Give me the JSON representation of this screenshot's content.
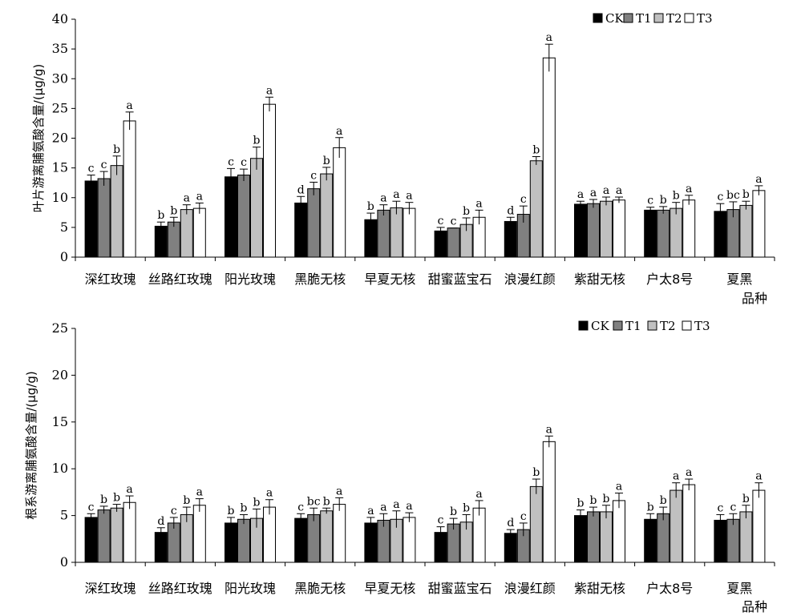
{
  "chart_data": [
    {
      "type": "bar",
      "ylabel": "叶片游离脯氨酸含量/(μg/g)",
      "xlabel": "品种",
      "ylim": [
        0,
        40
      ],
      "yticks": [
        0,
        5,
        10,
        15,
        20,
        25,
        30,
        35,
        40
      ],
      "legend": "top-right",
      "categories": [
        "深红玫瑰",
        "丝路红玫瑰",
        "阳光玫瑰",
        "黑脆无核",
        "早夏无核",
        "甜蜜蓝宝石",
        "浪漫红颜",
        "紫甜无核",
        "户太8号",
        "夏黑"
      ],
      "series": [
        {
          "name": "CK",
          "color": "#000000",
          "values": [
            12.8,
            5.2,
            13.5,
            9.1,
            6.3,
            4.4,
            6.0,
            8.9,
            7.9,
            7.7
          ],
          "errors": [
            1.0,
            0.7,
            1.4,
            1.1,
            1.1,
            0.6,
            0.7,
            0.5,
            0.5,
            1.3
          ],
          "labels": [
            "c",
            "b",
            "c",
            "d",
            "b",
            "c",
            "d",
            "a",
            "c",
            "c"
          ]
        },
        {
          "name": "T1",
          "color": "#808080",
          "values": [
            13.2,
            5.9,
            13.8,
            11.5,
            7.9,
            4.9,
            7.2,
            9.0,
            7.9,
            8.0
          ],
          "errors": [
            1.2,
            0.8,
            1.0,
            1.1,
            0.9,
            0.0,
            1.4,
            0.7,
            0.6,
            1.3
          ],
          "labels": [
            "c",
            "b",
            "c",
            "c",
            "a",
            "c",
            "c",
            "a",
            "b",
            "bc"
          ]
        },
        {
          "name": "T2",
          "color": "#c0c0c0",
          "values": [
            15.4,
            8.0,
            16.6,
            14.0,
            8.3,
            5.5,
            16.2,
            9.4,
            8.2,
            8.7
          ],
          "errors": [
            1.6,
            0.8,
            1.9,
            1.1,
            1.1,
            1.1,
            0.7,
            0.7,
            1.0,
            0.7
          ],
          "labels": [
            "b",
            "a",
            "b",
            "b",
            "a",
            "b",
            "b",
            "a",
            "b",
            "b"
          ]
        },
        {
          "name": "T3",
          "color": "#ffffff",
          "values": [
            22.9,
            8.2,
            25.7,
            18.4,
            8.2,
            6.7,
            33.5,
            9.6,
            9.6,
            11.2
          ],
          "errors": [
            1.5,
            0.9,
            1.2,
            1.7,
            1.0,
            1.2,
            2.3,
            0.5,
            0.8,
            0.8
          ],
          "labels": [
            "a",
            "a",
            "a",
            "a",
            "a",
            "a",
            "a",
            "a",
            "a",
            "a"
          ]
        }
      ]
    },
    {
      "type": "bar",
      "ylabel": "根系游离脯氨酸含量/(μg/g)",
      "xlabel": "品种",
      "ylim": [
        0,
        25
      ],
      "yticks": [
        0,
        5,
        10,
        15,
        20,
        25
      ],
      "legend": "top-right",
      "categories": [
        "深红玫瑰",
        "丝路红玫瑰",
        "阳光玫瑰",
        "黑脆无核",
        "早夏无核",
        "甜蜜蓝宝石",
        "浪漫红颜",
        "紫甜无核",
        "户太8号",
        "夏黑"
      ],
      "series": [
        {
          "name": "CK",
          "color": "#000000",
          "values": [
            4.8,
            3.2,
            4.2,
            4.7,
            4.2,
            3.2,
            3.1,
            5.0,
            4.6,
            4.5
          ],
          "errors": [
            0.4,
            0.5,
            0.6,
            0.5,
            0.6,
            0.6,
            0.4,
            0.6,
            0.6,
            0.6
          ],
          "labels": [
            "c",
            "d",
            "b",
            "c",
            "a",
            "c",
            "d",
            "b",
            "b",
            "c"
          ]
        },
        {
          "name": "T1",
          "color": "#808080",
          "values": [
            5.6,
            4.2,
            4.6,
            5.1,
            4.5,
            4.1,
            3.5,
            5.4,
            5.2,
            4.6
          ],
          "errors": [
            0.4,
            0.6,
            0.5,
            0.7,
            0.7,
            0.6,
            0.7,
            0.5,
            0.7,
            0.6
          ],
          "labels": [
            "b",
            "c",
            "b",
            "bc",
            "a",
            "b",
            "c",
            "b",
            "b",
            "c"
          ]
        },
        {
          "name": "T2",
          "color": "#c0c0c0",
          "values": [
            5.8,
            5.1,
            4.7,
            5.5,
            4.6,
            4.3,
            8.1,
            5.4,
            7.7,
            5.4
          ],
          "errors": [
            0.4,
            0.8,
            1.0,
            0.3,
            0.9,
            0.8,
            0.8,
            0.7,
            0.8,
            0.7
          ],
          "labels": [
            "b",
            "b",
            "b",
            "b",
            "a",
            "b",
            "b",
            "b",
            "a",
            "b"
          ]
        },
        {
          "name": "T3",
          "color": "#ffffff",
          "values": [
            6.4,
            6.1,
            5.9,
            6.2,
            4.8,
            5.8,
            12.9,
            6.6,
            8.3,
            7.7
          ],
          "errors": [
            0.7,
            0.7,
            0.8,
            0.7,
            0.5,
            0.8,
            0.6,
            0.8,
            0.6,
            0.8
          ],
          "labels": [
            "a",
            "a",
            "a",
            "a",
            "a",
            "a",
            "a",
            "a",
            "a",
            "a"
          ]
        }
      ]
    }
  ]
}
